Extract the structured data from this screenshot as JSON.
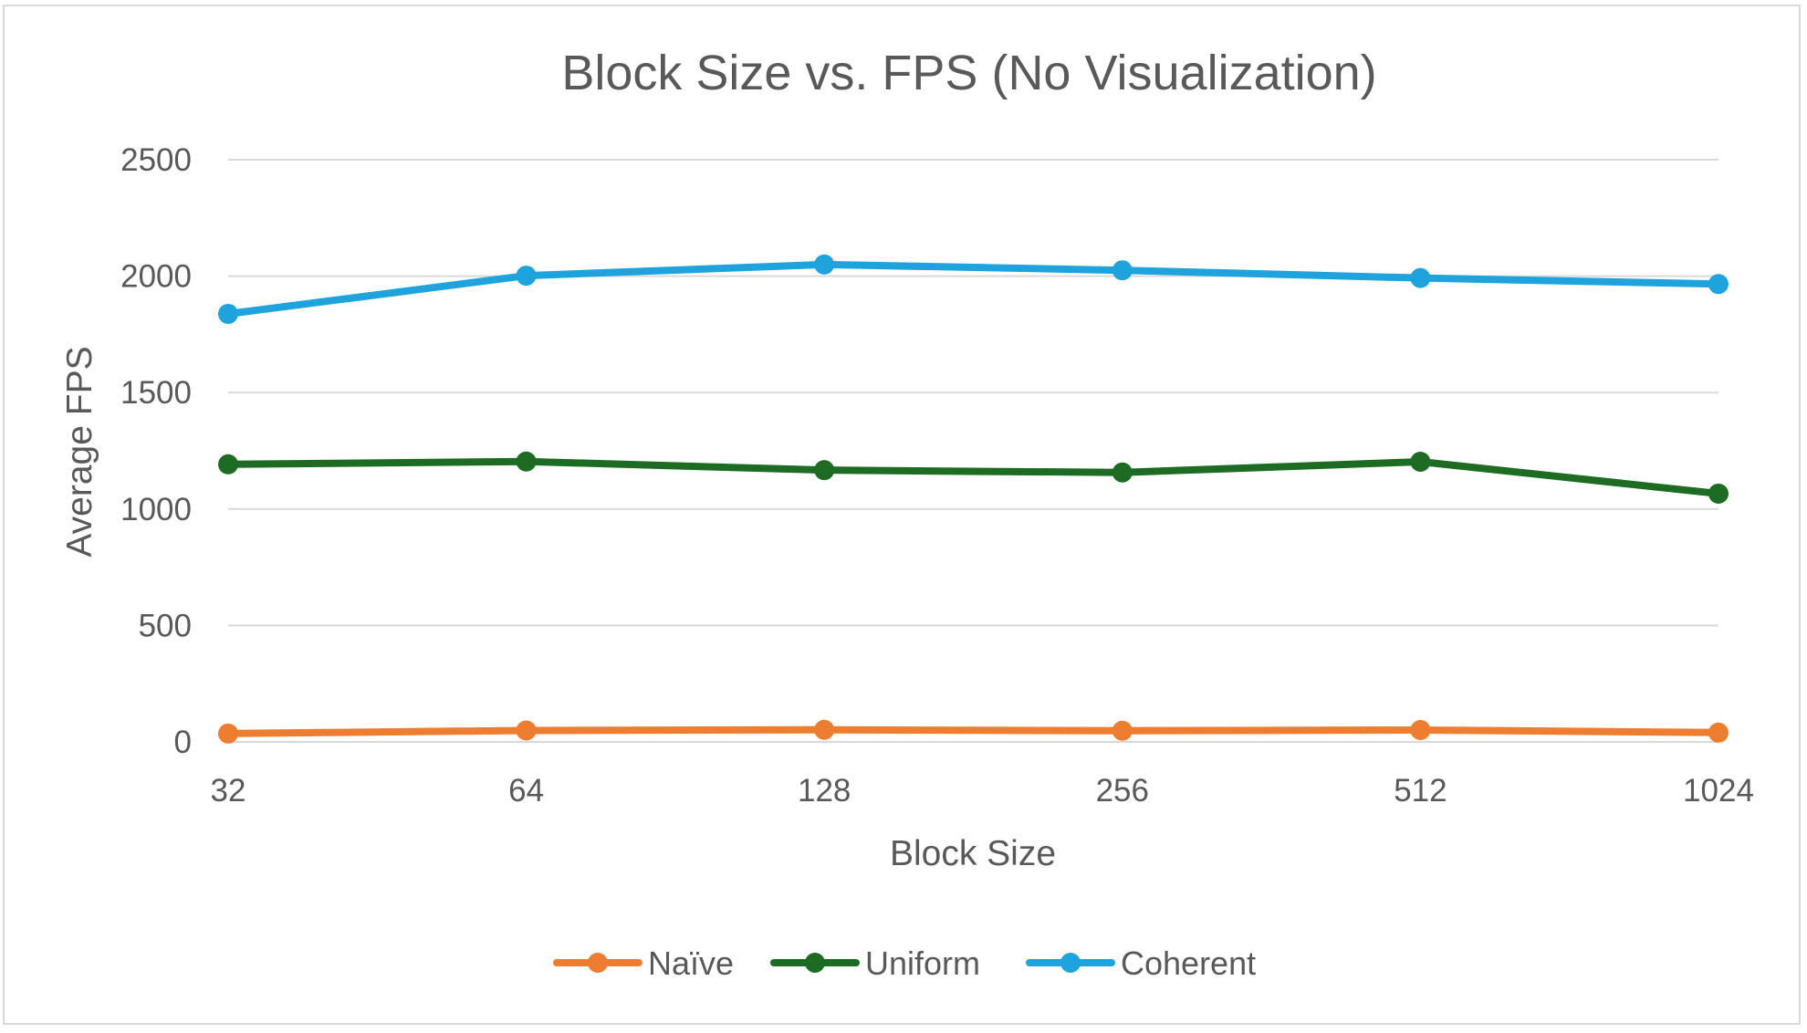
{
  "chart_data": {
    "type": "line",
    "title": "Block Size vs. FPS (No Visualization)",
    "xlabel": "Block Size",
    "ylabel": "Average FPS",
    "categories": [
      "32",
      "64",
      "128",
      "256",
      "512",
      "1024"
    ],
    "ylim": [
      0,
      2500
    ],
    "yticks": [
      0,
      500,
      1000,
      1500,
      2000,
      2500
    ],
    "grid": true,
    "legend_position": "bottom",
    "series": [
      {
        "name": "Naïve",
        "color": "#ed7d31",
        "values": [
          36,
          49,
          52,
          48,
          51,
          40
        ]
      },
      {
        "name": "Uniform",
        "color": "#1e6b23",
        "values": [
          1192,
          1204,
          1167,
          1157,
          1203,
          1066
        ]
      },
      {
        "name": "Coherent",
        "color": "#1ea3dc",
        "values": [
          1838,
          2002,
          2050,
          2025,
          1992,
          1966
        ]
      }
    ]
  }
}
